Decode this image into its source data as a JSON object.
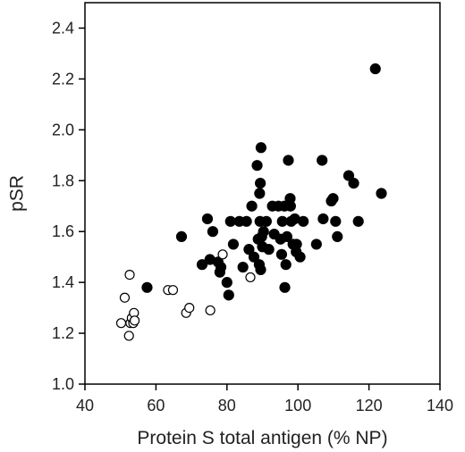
{
  "chart_data": {
    "type": "scatter",
    "title": "",
    "xlabel": "Protein S total antigen (% NP)",
    "ylabel": "pSR",
    "xlim": [
      40,
      140
    ],
    "ylim": [
      1.0,
      2.5
    ],
    "xticks": [
      "40",
      "60",
      "80",
      "100",
      "120",
      "140"
    ],
    "yticks": [
      "1.0",
      "1.2",
      "1.4",
      "1.6",
      "1.8",
      "2.0",
      "2.2",
      "2.4"
    ],
    "grid": false,
    "legend": "none",
    "series": [
      {
        "marker": "filled-circle",
        "color": "#000000",
        "points": [
          [
            57.5,
            1.38
          ],
          [
            67.2,
            1.58
          ],
          [
            73,
            1.47
          ],
          [
            74.5,
            1.65
          ],
          [
            75.2,
            1.49
          ],
          [
            76,
            1.6
          ],
          [
            77.5,
            1.48
          ],
          [
            78.3,
            1.46
          ],
          [
            78,
            1.44
          ],
          [
            80,
            1.4
          ],
          [
            80.5,
            1.35
          ],
          [
            81,
            1.64
          ],
          [
            81.8,
            1.55
          ],
          [
            83.5,
            1.64
          ],
          [
            84.5,
            1.46
          ],
          [
            85.5,
            1.64
          ],
          [
            86.2,
            1.53
          ],
          [
            87,
            1.7
          ],
          [
            87.6,
            1.5
          ],
          [
            88.5,
            1.86
          ],
          [
            88.8,
            1.57
          ],
          [
            89.1,
            1.47
          ],
          [
            89.2,
            1.75
          ],
          [
            89.3,
            1.64
          ],
          [
            89.4,
            1.79
          ],
          [
            89.5,
            1.45
          ],
          [
            89.6,
            1.93
          ],
          [
            89.8,
            1.58
          ],
          [
            90,
            1.54
          ],
          [
            90.3,
            1.6
          ],
          [
            91.1,
            1.64
          ],
          [
            91.8,
            1.53
          ],
          [
            92.8,
            1.7
          ],
          [
            93.3,
            1.59
          ],
          [
            94.5,
            1.7
          ],
          [
            95.1,
            1.57
          ],
          [
            95.4,
            1.51
          ],
          [
            95.6,
            1.64
          ],
          [
            96.2,
            1.7
          ],
          [
            96.3,
            1.38
          ],
          [
            96.6,
            1.47
          ],
          [
            96.9,
            1.58
          ],
          [
            97.3,
            1.88
          ],
          [
            97.8,
            1.73
          ],
          [
            97.9,
            1.7
          ],
          [
            98.1,
            1.64
          ],
          [
            98.6,
            1.55
          ],
          [
            99.1,
            1.65
          ],
          [
            99.5,
            1.52
          ],
          [
            99.6,
            1.55
          ],
          [
            100.6,
            1.5
          ],
          [
            101.5,
            1.64
          ],
          [
            105.2,
            1.55
          ],
          [
            106.8,
            1.88
          ],
          [
            107.1,
            1.65
          ],
          [
            109.4,
            1.72
          ],
          [
            109.9,
            1.73
          ],
          [
            110.6,
            1.64
          ],
          [
            111.1,
            1.58
          ],
          [
            114.3,
            1.82
          ],
          [
            115.7,
            1.79
          ],
          [
            117,
            1.64
          ],
          [
            121.8,
            2.24
          ],
          [
            123.5,
            1.75
          ]
        ]
      },
      {
        "marker": "open-circle",
        "color": "#000000",
        "points": [
          [
            50.2,
            1.24
          ],
          [
            51.2,
            1.34
          ],
          [
            52.4,
            1.19
          ],
          [
            52.6,
            1.43
          ],
          [
            52.8,
            1.24
          ],
          [
            53.2,
            1.26
          ],
          [
            53.6,
            1.24
          ],
          [
            53.8,
            1.28
          ],
          [
            54,
            1.25
          ],
          [
            63.4,
            1.37
          ],
          [
            64.8,
            1.37
          ],
          [
            68.5,
            1.28
          ],
          [
            69.4,
            1.3
          ],
          [
            75.3,
            1.29
          ],
          [
            78.8,
            1.51
          ],
          [
            86.6,
            1.42
          ]
        ]
      }
    ]
  }
}
